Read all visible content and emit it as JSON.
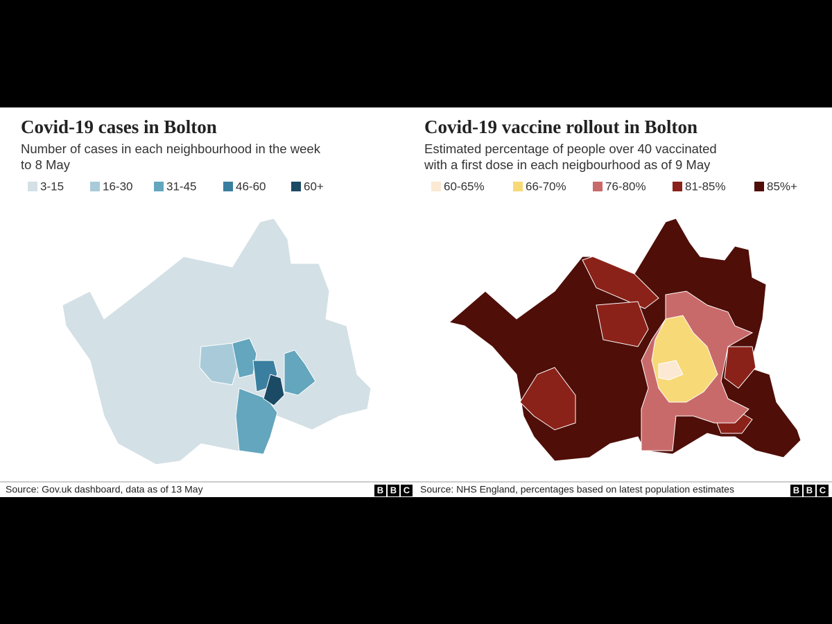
{
  "panels": [
    {
      "title": "Covid-19 cases in Bolton",
      "subtitle_lines": [
        "Number of cases in each neighbourhood in the week",
        "to 8 May"
      ],
      "legend": [
        {
          "label": "3-15",
          "color": "#d3e0e6"
        },
        {
          "label": "16-30",
          "color": "#a9cbd9"
        },
        {
          "label": "31-45",
          "color": "#63a6bd"
        },
        {
          "label": "46-60",
          "color": "#3a7f9f"
        },
        {
          "label": "60+",
          "color": "#1b4a64"
        }
      ],
      "source": "Source: Gov.uk dashboard, data as of 13 May",
      "logo": [
        "B",
        "B",
        "C"
      ]
    },
    {
      "title": "Covid-19 vaccine rollout in Bolton",
      "subtitle_lines": [
        "Estimated percentage of people over 40 vaccinated",
        "with a first dose in each neigbourhood as of 9 May"
      ],
      "legend": [
        {
          "label": "60-65%",
          "color": "#fbe9d3"
        },
        {
          "label": "66-70%",
          "color": "#f8d977"
        },
        {
          "label": "76-80%",
          "color": "#c96a6a"
        },
        {
          "label": "81-85%",
          "color": "#8b2219"
        },
        {
          "label": "85%+",
          "color": "#4f0e08"
        }
      ],
      "source": "Source: NHS England, percentages based on latest population estimates",
      "logo": [
        "B",
        "B",
        "C"
      ]
    }
  ]
}
